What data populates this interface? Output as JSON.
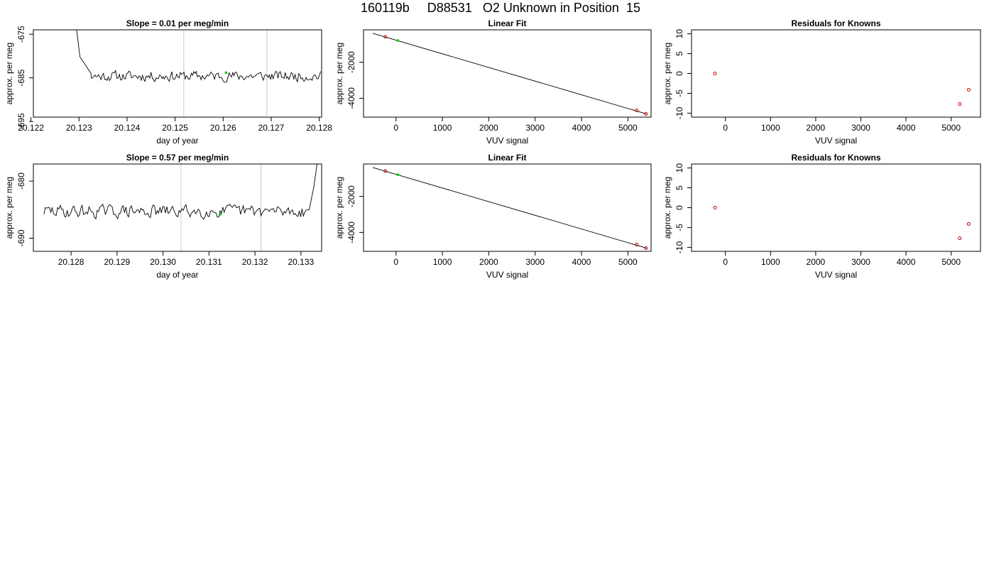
{
  "header": {
    "title": "160119b     D88531   O2 Unknown in Position  15"
  },
  "chart_data": [
    {
      "type": "line",
      "panel": "timeseries-1",
      "title": "Slope =  0.01  per meg/min",
      "xlabel": "day of year",
      "ylabel": "approx. per meg",
      "xlim": [
        20.12205,
        20.12805
      ],
      "ylim": [
        -694,
        -674
      ],
      "x_ticks": [
        20.122,
        20.123,
        20.124,
        20.125,
        20.126,
        20.127,
        20.128
      ],
      "x_tick_labels": [
        "20.122",
        "20.123",
        "20.124",
        "20.125",
        "20.126",
        "20.127",
        "20.128"
      ],
      "y_ticks": [
        -695,
        -685,
        -675
      ],
      "y_tick_labels": [
        "-695",
        "-685",
        "-675"
      ],
      "x_range": [
        20.12295,
        20.12803
      ],
      "line_seed": 11,
      "line_base": -684.6,
      "line_amp": 1.6,
      "line_start": [
        20.12295,
        -674
      ],
      "line_start_decay": [
        20.12302,
        -680.2,
        20.12316,
        -682.5,
        20.12325,
        -684.0
      ],
      "line_end": null,
      "vlines": [
        20.12518,
        20.12691
      ],
      "grey_color": "#cccccc",
      "highlight_point": {
        "x": 20.12606,
        "y": -683.8
      },
      "point_color": "#00cc00"
    },
    {
      "type": "scatter",
      "panel": "linear-fit-1",
      "title": "Linear Fit",
      "xlabel": "VUV signal",
      "ylabel": "approx. per meg",
      "xlim": [
        -700,
        5500
      ],
      "ylim": [
        -5050,
        -200
      ],
      "x_ticks": [
        0,
        1000,
        2000,
        3000,
        4000,
        5000
      ],
      "x_tick_labels": [
        "0",
        "1000",
        "2000",
        "3000",
        "4000",
        "5000"
      ],
      "y_ticks": [
        -4000,
        -2000
      ],
      "y_tick_labels": [
        "-4000",
        "-2000"
      ],
      "fit_line": {
        "x": [
          -500,
          5400
        ],
        "y": [
          -395,
          -4870
        ]
      },
      "known_points": [
        {
          "x": -230,
          "y": -590
        },
        {
          "x": 5190,
          "y": -4670
        },
        {
          "x": 5390,
          "y": -4870
        }
      ],
      "unknown_points": [
        {
          "x": 40,
          "y": -795
        }
      ],
      "fit_color": "#000000",
      "known_color": "#cc0000",
      "unknown_color": "#00cc00"
    },
    {
      "type": "scatter",
      "panel": "residuals-1",
      "title": "Residuals for Knowns",
      "xlabel": "VUV signal",
      "ylabel": "approx. per meg",
      "xlim": [
        -750,
        5650
      ],
      "ylim": [
        -11,
        11
      ],
      "x_ticks": [
        0,
        1000,
        2000,
        3000,
        4000,
        5000
      ],
      "x_tick_labels": [
        "0",
        "1000",
        "2000",
        "3000",
        "4000",
        "5000"
      ],
      "y_ticks": [
        -10,
        -5,
        0,
        5,
        10
      ],
      "y_tick_labels": [
        "-10",
        "-5",
        "0",
        "5",
        "10"
      ],
      "points": [
        {
          "x": -230,
          "y": 0.0
        },
        {
          "x": 5190,
          "y": -7.7
        },
        {
          "x": 5390,
          "y": -4.1
        }
      ],
      "point_color": "#cc0000"
    },
    {
      "type": "line",
      "panel": "timeseries-2",
      "title": "Slope =  0.57  per meg/min",
      "xlabel": "day of year",
      "ylabel": "approx. per meg",
      "xlim": [
        20.12718,
        20.13345
      ],
      "ylim": [
        -692.3,
        -677
      ],
      "x_ticks": [
        20.128,
        20.129,
        20.13,
        20.131,
        20.132,
        20.133
      ],
      "x_tick_labels": [
        "20.128",
        "20.129",
        "20.130",
        "20.131",
        "20.132",
        "20.133"
      ],
      "y_ticks": [
        -690,
        -680
      ],
      "y_tick_labels": [
        "-690",
        "-680"
      ],
      "x_range": [
        20.12741,
        20.13335
      ],
      "line_seed": 29,
      "line_base": -685.3,
      "line_amp": 1.55,
      "line_start": null,
      "line_start_decay": null,
      "line_end": [
        20.13318,
        -685.0,
        20.13328,
        -681.0,
        20.13335,
        -677.0
      ],
      "vlines": [
        20.13039,
        20.13213
      ],
      "grey_color": "#cccccc",
      "highlight_point": {
        "x": 20.13125,
        "y": -685.8
      },
      "point_color": "#00cc00"
    },
    {
      "type": "scatter",
      "panel": "linear-fit-2",
      "title": "Linear Fit",
      "xlabel": "VUV signal",
      "ylabel": "approx. per meg",
      "xlim": [
        -700,
        5500
      ],
      "ylim": [
        -5050,
        -200
      ],
      "x_ticks": [
        0,
        1000,
        2000,
        3000,
        4000,
        5000
      ],
      "x_tick_labels": [
        "0",
        "1000",
        "2000",
        "3000",
        "4000",
        "5000"
      ],
      "y_ticks": [
        -4000,
        -2000
      ],
      "y_tick_labels": [
        "-4000",
        "-2000"
      ],
      "fit_line": {
        "x": [
          -500,
          5400
        ],
        "y": [
          -395,
          -4870
        ]
      },
      "known_points": [
        {
          "x": -230,
          "y": -590
        },
        {
          "x": 5190,
          "y": -4670
        },
        {
          "x": 5390,
          "y": -4870
        }
      ],
      "unknown_points": [
        {
          "x": 40,
          "y": -795
        }
      ],
      "fit_color": "#000000",
      "known_color": "#cc0000",
      "unknown_color": "#00cc00"
    },
    {
      "type": "scatter",
      "panel": "residuals-2",
      "title": "Residuals for Knowns",
      "xlabel": "VUV signal",
      "ylabel": "approx. per meg",
      "xlim": [
        -750,
        5650
      ],
      "ylim": [
        -11,
        11
      ],
      "x_ticks": [
        0,
        1000,
        2000,
        3000,
        4000,
        5000
      ],
      "x_tick_labels": [
        "0",
        "1000",
        "2000",
        "3000",
        "4000",
        "5000"
      ],
      "y_ticks": [
        -10,
        -5,
        0,
        5,
        10
      ],
      "y_tick_labels": [
        "-10",
        "-5",
        "0",
        "5",
        "10"
      ],
      "points": [
        {
          "x": -230,
          "y": 0.0
        },
        {
          "x": 5190,
          "y": -7.7
        },
        {
          "x": 5390,
          "y": -4.1
        }
      ],
      "point_color": "#cc0000"
    }
  ]
}
